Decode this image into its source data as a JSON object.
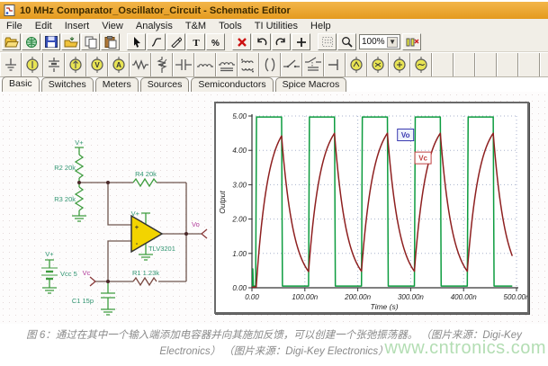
{
  "window": {
    "title": "10 MHz Comparator_Oscillator_Circuit - Schematic Editor"
  },
  "menu": {
    "items": [
      "File",
      "Edit",
      "Insert",
      "View",
      "Analysis",
      "T&M",
      "Tools",
      "TI Utilities",
      "Help"
    ]
  },
  "toolbar_main": {
    "zoom_level": "100%",
    "items": [
      "open",
      "export",
      "save",
      "print",
      "copy",
      "paste",
      "|",
      "cursor",
      "wire",
      "pen",
      "text",
      "scale",
      "|",
      "delete",
      "undo",
      "redo",
      "move",
      "|",
      "grid",
      "zoom",
      "zoom-level",
      "interactive"
    ]
  },
  "toolbar_components": {
    "items": [
      "ground",
      "voltage-source",
      "battery",
      "current-source",
      "voltmeter",
      "ammeter",
      "resistor",
      "potentiometer",
      "capacitor",
      "inductor",
      "inductor-iron",
      "coupled-coils",
      "transformer",
      "switch",
      "relay",
      "terminal",
      "meter-1",
      "meter-2",
      "meter-3",
      "meter-4"
    ],
    "empty_slots": 6
  },
  "tabs": {
    "items": [
      "Basic",
      "Switches",
      "Meters",
      "Sources",
      "Semiconductors",
      "Spice Macros"
    ],
    "active": "Basic"
  },
  "schematic": {
    "labels": {
      "v_plus_top": "V+",
      "r2": "R2 20k",
      "r3": "R3 20k",
      "r4": "R4 20k",
      "opamp_v_plus": "V+",
      "opamp_part": "TLV3201",
      "opamp_plus": "+",
      "opamp_minus": "-",
      "vo": "Vo",
      "r1": "R1 1.23k",
      "vc": "Vc",
      "c1": "C1 15p",
      "battery_v_plus": "V+",
      "battery": "Vcc 5"
    },
    "colors": {
      "component_green": "#3e9c3e",
      "label_green": "#2f9470",
      "wire_dark": "#70564e",
      "terminal_magenta": "#b03898",
      "opamp_fill": "#f2d400"
    }
  },
  "chart_data": {
    "type": "line",
    "title": "",
    "xlabel": "Time (s)",
    "ylabel": "Output",
    "x_unit": "ns",
    "xlim": [
      0,
      500
    ],
    "ylim": [
      0,
      5
    ],
    "x_tick_values": [
      0,
      100,
      200,
      300,
      400,
      500
    ],
    "x_tick_labels": [
      "0.00",
      "100.00n",
      "200.00n",
      "300.00n",
      "400.00n",
      "500.00n"
    ],
    "y_tick_values": [
      0,
      1,
      2,
      3,
      4,
      5
    ],
    "y_tick_labels": [
      "0.00",
      "1.00",
      "2.00",
      "3.00",
      "4.00",
      "5.00"
    ],
    "grid": "dotted",
    "grid_color": "#a8b2cc",
    "series": [
      {
        "name": "Vo",
        "type": "square",
        "color": "#0d9c3f",
        "low": 0.05,
        "high": 4.97,
        "rise_ns": [
          7,
          107,
          207,
          307,
          407
        ],
        "fall_ns": [
          56,
          156,
          256,
          356,
          456
        ],
        "start_ns": 0,
        "end_ns": 492,
        "initial_spike": {
          "t": 1.6,
          "v": 0.55
        }
      },
      {
        "name": "Vc",
        "type": "rc_exponential",
        "color": "#8e2020",
        "v_init": 0.02,
        "v_low": 0.5,
        "v_high": 4.5,
        "charge_target": 5.0,
        "discharge_target": 0.0,
        "tau_charge_ns": 22.3,
        "tau_discharge_ns": 22.8,
        "rise_ns": [
          8,
          107,
          207,
          307,
          407
        ],
        "fall_ns": [
          56,
          156,
          256,
          356,
          456
        ],
        "start_ns": 8,
        "end_ns": 492
      }
    ],
    "legend": [
      {
        "label": "Vo",
        "color": "#3a3ab0",
        "fill": "#eef2fc",
        "x_ns": 275,
        "v": 4.62
      },
      {
        "label": "Vc",
        "color": "#c04040",
        "fill": "#ffffff",
        "x_ns": 308,
        "v": 3.95
      }
    ]
  },
  "caption": {
    "line1": "图 6：通过在其中一个输入端添加电容器并向其施加反馈，可以创建一个张弛振荡器。 （图片来源：Digi-Key",
    "line2": "Electronics） （图片来源：Digi-Key Electronics）",
    "watermark": "www.cntronics.com"
  }
}
